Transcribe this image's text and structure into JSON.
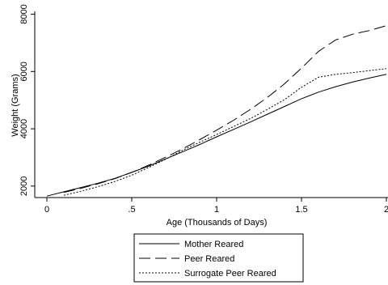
{
  "chart_data": {
    "type": "line",
    "xlabel": "Age (Thousands of Days)",
    "ylabel": "Weight (Grams)",
    "xlim": [
      0,
      2
    ],
    "ylim": [
      1600,
      8100
    ],
    "xticks": [
      {
        "value": 0,
        "label": "0"
      },
      {
        "value": 0.5,
        "label": ".5"
      },
      {
        "value": 1,
        "label": "1"
      },
      {
        "value": 1.5,
        "label": "1.5"
      },
      {
        "value": 2,
        "label": "2"
      }
    ],
    "yticks": [
      {
        "value": 2000,
        "label": "2000"
      },
      {
        "value": 4000,
        "label": "4000"
      },
      {
        "value": 6000,
        "label": "6000"
      },
      {
        "value": 8000,
        "label": "8000"
      }
    ],
    "grid": false,
    "legend_position": "bottom",
    "series": [
      {
        "name": "Mother Reared",
        "style": "solid",
        "color": "#000000",
        "x": [
          0.0,
          0.1,
          0.2,
          0.3,
          0.4,
          0.5,
          0.6,
          0.7,
          0.8,
          0.9,
          1.0,
          1.1,
          1.2,
          1.3,
          1.4,
          1.5,
          1.6,
          1.7,
          1.8,
          1.9,
          2.0
        ],
        "y": [
          1650,
          1800,
          1950,
          2100,
          2270,
          2480,
          2700,
          2950,
          3200,
          3450,
          3720,
          3980,
          4240,
          4510,
          4780,
          5050,
          5280,
          5470,
          5630,
          5770,
          5900
        ]
      },
      {
        "name": "Peer Reared",
        "style": "dashed",
        "color": "#000000",
        "x": [
          0.1,
          0.2,
          0.3,
          0.4,
          0.5,
          0.6,
          0.7,
          0.8,
          0.9,
          1.0,
          1.1,
          1.2,
          1.3,
          1.4,
          1.5,
          1.6,
          1.7,
          1.8,
          1.9,
          2.0
        ],
        "y": [
          1780,
          1920,
          2080,
          2260,
          2480,
          2730,
          3010,
          3300,
          3620,
          3950,
          4300,
          4680,
          5100,
          5570,
          6120,
          6700,
          7100,
          7300,
          7430,
          7600
        ]
      },
      {
        "name": "Surrogate Peer Reared",
        "style": "dotted",
        "color": "#000000",
        "x": [
          0.1,
          0.2,
          0.3,
          0.4,
          0.5,
          0.6,
          0.7,
          0.8,
          0.9,
          1.0,
          1.1,
          1.2,
          1.3,
          1.4,
          1.5,
          1.6,
          1.7,
          1.8,
          1.9,
          2.0
        ],
        "y": [
          1680,
          1820,
          1980,
          2160,
          2380,
          2650,
          2940,
          3250,
          3530,
          3800,
          4080,
          4360,
          4680,
          5020,
          5450,
          5800,
          5900,
          5960,
          6030,
          6100
        ]
      }
    ]
  }
}
